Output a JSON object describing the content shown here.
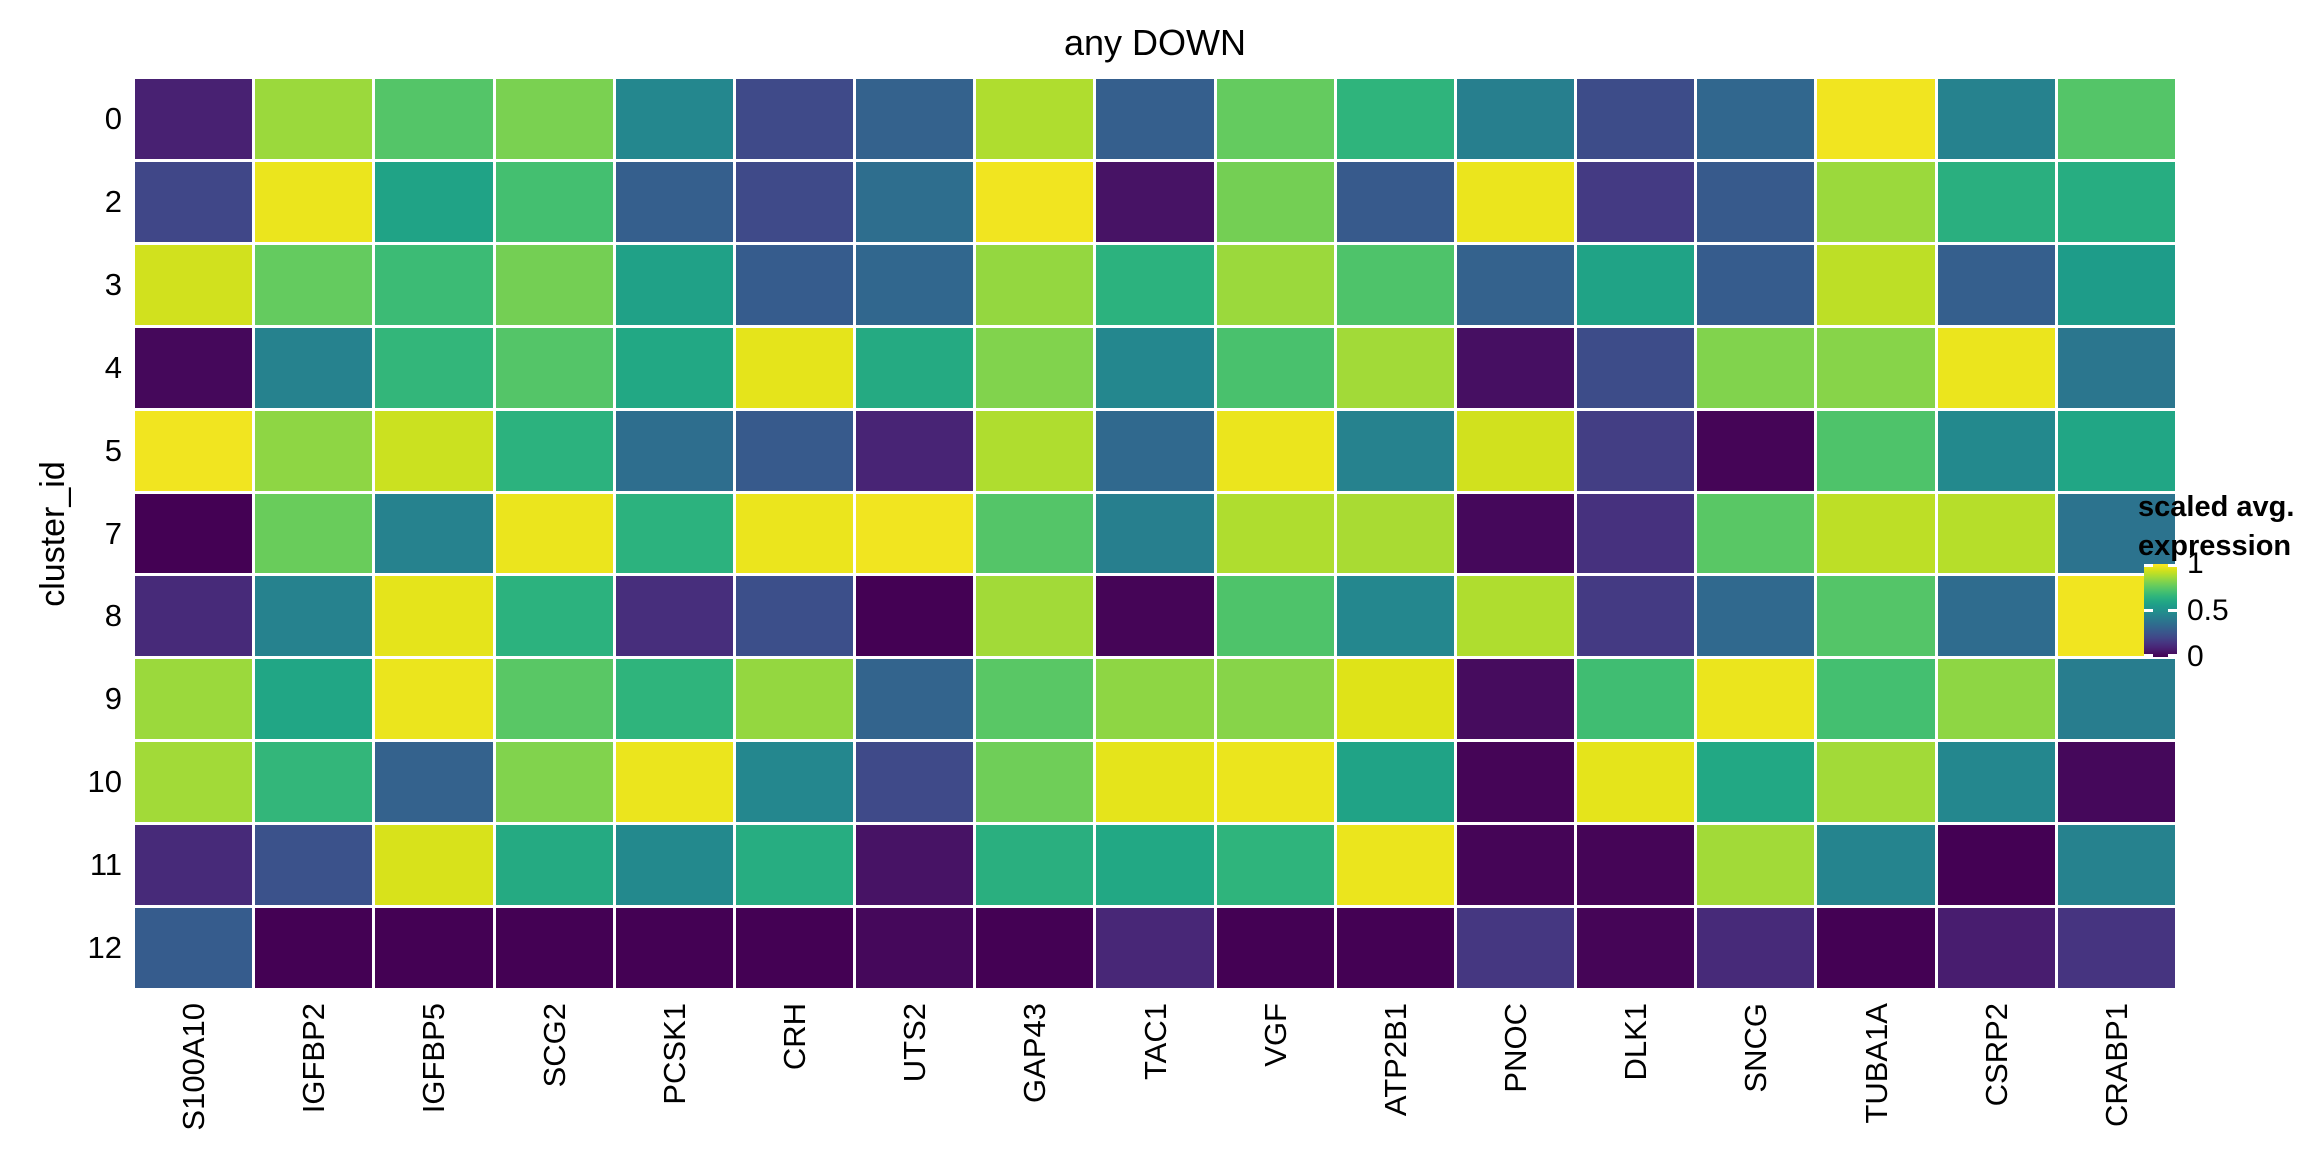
{
  "title": "any DOWN",
  "axes": {
    "y_title": "cluster_id",
    "y_ticks": [
      "0",
      "2",
      "3",
      "4",
      "5",
      "7",
      "8",
      "9",
      "10",
      "11",
      "12"
    ],
    "x_ticks": [
      "S100A10",
      "IGFBP2",
      "IGFBP5",
      "SCG2",
      "PCSK1",
      "CRH",
      "UTS2",
      "GAP43",
      "TAC1",
      "VGF",
      "ATP2B1",
      "PNOC",
      "DLK1",
      "SNCG",
      "TUBA1A",
      "CSRP2",
      "CRABP1"
    ]
  },
  "legend": {
    "title_line1": "scaled avg.",
    "title_line2": "expression",
    "ticks": [
      {
        "label": "1",
        "value": 1
      },
      {
        "label": "0.5",
        "value": 0.5
      },
      {
        "label": "0",
        "value": 0
      }
    ]
  },
  "chart_data": {
    "type": "heatmap",
    "title": "any DOWN",
    "xlabel": "",
    "ylabel": "cluster_id",
    "legend_title": "scaled avg. expression",
    "legend_position": "right",
    "colormap": "viridis",
    "value_range": [
      0,
      1
    ],
    "grid": false,
    "columns": [
      "S100A10",
      "IGFBP2",
      "IGFBP5",
      "SCG2",
      "PCSK1",
      "CRH",
      "UTS2",
      "GAP43",
      "TAC1",
      "VGF",
      "ATP2B1",
      "PNOC",
      "DLK1",
      "SNCG",
      "TUBA1A",
      "CSRP2",
      "CRABP1"
    ],
    "rows": [
      "0",
      "2",
      "3",
      "4",
      "5",
      "7",
      "8",
      "9",
      "10",
      "11",
      "12"
    ],
    "values": [
      [
        0.09,
        0.85,
        0.73,
        0.8,
        0.46,
        0.22,
        0.31,
        0.88,
        0.3,
        0.76,
        0.65,
        0.43,
        0.23,
        0.33,
        0.98,
        0.44,
        0.73
      ],
      [
        0.21,
        0.97,
        0.58,
        0.7,
        0.3,
        0.22,
        0.36,
        0.98,
        0.05,
        0.79,
        0.28,
        0.97,
        0.17,
        0.28,
        0.85,
        0.63,
        0.62
      ],
      [
        0.93,
        0.76,
        0.68,
        0.79,
        0.57,
        0.29,
        0.33,
        0.84,
        0.64,
        0.85,
        0.72,
        0.31,
        0.58,
        0.29,
        0.9,
        0.3,
        0.55
      ],
      [
        0.02,
        0.44,
        0.66,
        0.73,
        0.6,
        0.96,
        0.61,
        0.81,
        0.46,
        0.71,
        0.86,
        0.04,
        0.23,
        0.81,
        0.82,
        0.97,
        0.39
      ],
      [
        0.98,
        0.83,
        0.92,
        0.64,
        0.36,
        0.28,
        0.1,
        0.88,
        0.34,
        0.97,
        0.44,
        0.93,
        0.18,
        0.01,
        0.72,
        0.47,
        0.59
      ],
      [
        0.0,
        0.77,
        0.44,
        0.97,
        0.64,
        0.97,
        0.98,
        0.73,
        0.43,
        0.88,
        0.87,
        0.02,
        0.14,
        0.74,
        0.9,
        0.89,
        0.38
      ],
      [
        0.12,
        0.44,
        0.96,
        0.64,
        0.13,
        0.24,
        0.0,
        0.86,
        0.01,
        0.72,
        0.46,
        0.88,
        0.17,
        0.34,
        0.73,
        0.35,
        0.98
      ],
      [
        0.85,
        0.59,
        0.97,
        0.74,
        0.65,
        0.84,
        0.32,
        0.74,
        0.83,
        0.82,
        0.95,
        0.03,
        0.69,
        0.97,
        0.7,
        0.83,
        0.42
      ],
      [
        0.86,
        0.66,
        0.31,
        0.81,
        0.97,
        0.46,
        0.22,
        0.78,
        0.96,
        0.97,
        0.58,
        0.01,
        0.96,
        0.6,
        0.86,
        0.46,
        0.02
      ],
      [
        0.12,
        0.25,
        0.94,
        0.61,
        0.47,
        0.62,
        0.05,
        0.63,
        0.6,
        0.65,
        0.97,
        0.01,
        0.01,
        0.86,
        0.45,
        0.0,
        0.44
      ],
      [
        0.29,
        0.0,
        0.0,
        0.0,
        0.0,
        0.0,
        0.02,
        0.0,
        0.11,
        0.0,
        0.0,
        0.16,
        0.01,
        0.12,
        0.0,
        0.08,
        0.15
      ]
    ]
  },
  "colors": {
    "background": "#FFFFFF",
    "cell_gap": "#FFFFFF",
    "text": "#000000",
    "viridis_stops": [
      [
        0.0,
        "#440154"
      ],
      [
        0.05,
        "#471365"
      ],
      [
        0.1,
        "#482475"
      ],
      [
        0.15,
        "#463480"
      ],
      [
        0.2,
        "#414487"
      ],
      [
        0.25,
        "#3B528B"
      ],
      [
        0.3,
        "#355F8D"
      ],
      [
        0.35,
        "#2F6C8E"
      ],
      [
        0.4,
        "#2A788E"
      ],
      [
        0.45,
        "#25848E"
      ],
      [
        0.5,
        "#21918C"
      ],
      [
        0.55,
        "#1E9C89"
      ],
      [
        0.6,
        "#22A884"
      ],
      [
        0.65,
        "#2FB47C"
      ],
      [
        0.7,
        "#44BF70"
      ],
      [
        0.75,
        "#5EC962"
      ],
      [
        0.8,
        "#7AD151"
      ],
      [
        0.85,
        "#9BD93C"
      ],
      [
        0.9,
        "#BDDF26"
      ],
      [
        0.95,
        "#DFE318"
      ],
      [
        1.0,
        "#FDE725"
      ]
    ]
  }
}
